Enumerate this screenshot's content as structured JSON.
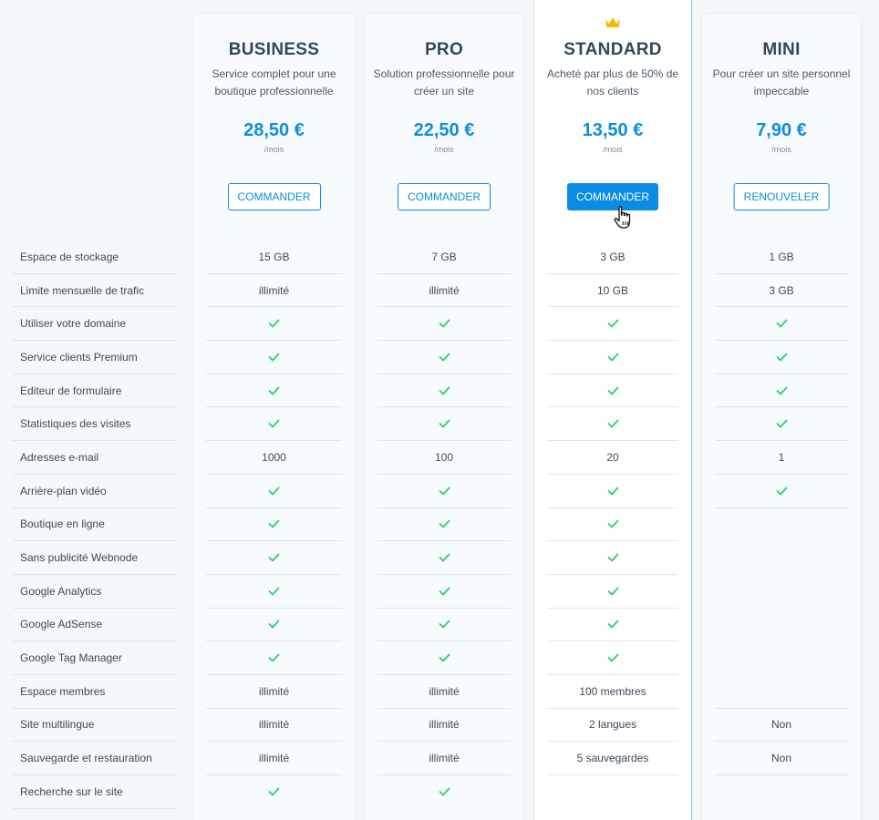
{
  "features": [
    "Espace de stockage",
    "Limite mensuelle de trafic",
    "Utiliser votre domaine",
    "Service clients Premium",
    "Editeur de formulaire",
    "Statistiques des visites",
    "Adresses e-mail",
    "Arrière-plan vidéo",
    "Boutique en ligne",
    "Sans publicité Webnode",
    "Google Analytics",
    "Google AdSense",
    "Google Tag Manager",
    "Espace membres",
    "Site multilingue",
    "Sauvegarde et restauration",
    "Recherche sur le site"
  ],
  "plans": [
    {
      "id": "business",
      "name": "BUSINESS",
      "description": "Service complet pour une boutique professionnelle",
      "price": "28,50 €",
      "period": "/mois",
      "button": "COMMANDER",
      "values": [
        "15 GB",
        "illimité",
        "check",
        "check",
        "check",
        "check",
        "1000",
        "check",
        "check",
        "check",
        "check",
        "check",
        "check",
        "illimité",
        "illimité",
        "illimité",
        "check"
      ]
    },
    {
      "id": "pro",
      "name": "PRO",
      "description": "Solution professionnelle pour créer un site",
      "price": "22,50 €",
      "period": "/mois",
      "button": "COMMANDER",
      "values": [
        "7 GB",
        "illimité",
        "check",
        "check",
        "check",
        "check",
        "100",
        "check",
        "check",
        "check",
        "check",
        "check",
        "check",
        "illimité",
        "illimité",
        "illimité",
        "check"
      ]
    },
    {
      "id": "standard",
      "name": "STANDARD",
      "description": "Acheté par plus de 50% de nos clients",
      "price": "13,50 €",
      "period": "/mois",
      "button": "COMMANDER",
      "featured": true,
      "values": [
        "3 GB",
        "10 GB",
        "check",
        "check",
        "check",
        "check",
        "20",
        "check",
        "check",
        "check",
        "check",
        "check",
        "check",
        "100 membres",
        "2 langues",
        "5 sauvegardes",
        ""
      ]
    },
    {
      "id": "mini",
      "name": "MINI",
      "description": "Pour créer un site personnel impeccable",
      "price": "7,90 €",
      "period": "/mois",
      "button": "RENOUVELER",
      "values": [
        "1 GB",
        "3 GB",
        "check",
        "check",
        "check",
        "check",
        "1",
        "check",
        "",
        "",
        "",
        "",
        "",
        "",
        "Non",
        "Non",
        ""
      ]
    }
  ],
  "colors": {
    "accent": "#0c8edf",
    "check": "#2ecc71",
    "crown": "#f5b800"
  },
  "icons": {
    "included": "check-icon",
    "featured": "crown-icon",
    "pointer": "hand-cursor-icon"
  }
}
